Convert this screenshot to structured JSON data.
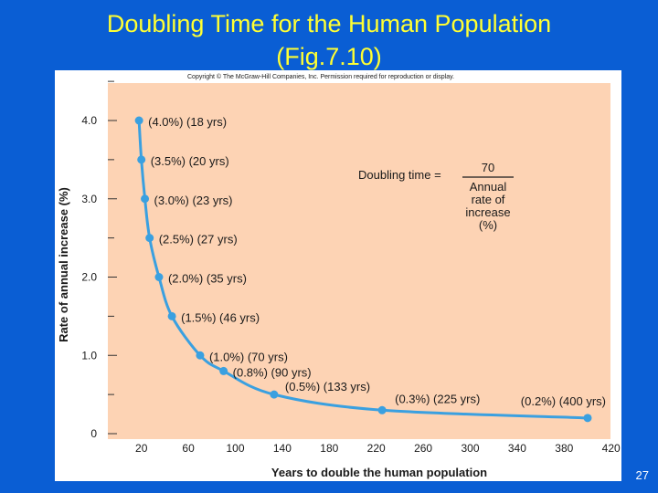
{
  "slide": {
    "title_line1": "Doubling Time for the Human Population",
    "title_line2": "(Fig.7.10)",
    "page_number": "27"
  },
  "copyright": "Copyright © The McGraw-Hill Companies, Inc. Permission required for reproduction or display.",
  "colors": {
    "background": "#0a5ed4",
    "title": "#ffff33",
    "plot_area": "#fdd3b4",
    "curve": "#3aa0e0"
  },
  "chart_data": {
    "type": "line",
    "xlabel": "Years to double the human population",
    "ylabel": "Rate of annual increase (%)",
    "xlim": [
      0,
      420
    ],
    "ylim": [
      0,
      4.5
    ],
    "x_ticks": [
      20,
      60,
      100,
      140,
      180,
      220,
      260,
      300,
      340,
      380,
      420
    ],
    "y_ticks": [
      0,
      1.0,
      2.0,
      3.0,
      4.0
    ],
    "y_tick_labels": [
      "0",
      "1.0",
      "2.0",
      "3.0",
      "4.0"
    ],
    "points": [
      {
        "x": 18,
        "y": 4.0,
        "label": "(4.0%)  (18 yrs)"
      },
      {
        "x": 20,
        "y": 3.5,
        "label": "(3.5%)  (20 yrs)"
      },
      {
        "x": 23,
        "y": 3.0,
        "label": "(3.0%)  (23 yrs)"
      },
      {
        "x": 27,
        "y": 2.5,
        "label": "(2.5%)  (27 yrs)"
      },
      {
        "x": 35,
        "y": 2.0,
        "label": "(2.0%)  (35 yrs)"
      },
      {
        "x": 46,
        "y": 1.5,
        "label": "(1.5%)  (46 yrs)"
      },
      {
        "x": 70,
        "y": 1.0,
        "label": "(1.0%)  (70 yrs)"
      },
      {
        "x": 90,
        "y": 0.8,
        "label": "(0.8%)  (90 yrs)"
      },
      {
        "x": 133,
        "y": 0.5,
        "label": "(0.5%)  (133 yrs)"
      },
      {
        "x": 225,
        "y": 0.3,
        "label": "(0.3%)  (225 yrs)"
      },
      {
        "x": 400,
        "y": 0.2,
        "label": "(0.2%)  (400 yrs)"
      }
    ],
    "formula": {
      "lhs": "Doubling time =",
      "numerator": "70",
      "denominator": [
        "Annual",
        "rate of",
        "increase",
        "(%)"
      ]
    }
  }
}
